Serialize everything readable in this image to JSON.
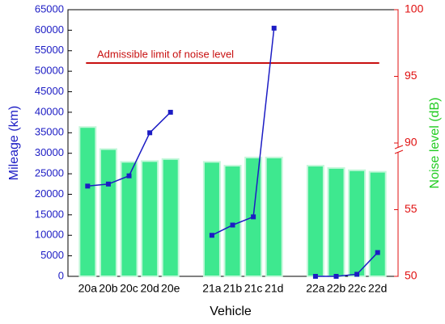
{
  "chart_data": {
    "type": "bar-line",
    "x_label": "Vehicle",
    "y_label": "Mileage (km)",
    "y2_label": "Noise level (dB)",
    "categories": [
      "20a",
      "20b",
      "20c",
      "20d",
      "20e",
      null,
      "21a",
      "21b",
      "21c",
      "21d",
      null,
      "22a",
      "22b",
      "22c",
      "22d"
    ],
    "series": [
      {
        "name": "Noise level",
        "kind": "bar",
        "axis": "y2",
        "color": "#3ee88f",
        "values": [
          91.2,
          86.8,
          80.1,
          80.5,
          81.6,
          null,
          80.1,
          78.1,
          82.4,
          82.4,
          null,
          78.1,
          76.9,
          75.7,
          74.9
        ]
      },
      {
        "name": "Mileage",
        "kind": "line",
        "color": "#1c1cc4",
        "values": [
          22000,
          22500,
          24500,
          35000,
          40000,
          null,
          10000,
          12500,
          14500,
          60500,
          null,
          0,
          0,
          500,
          5800
        ]
      }
    ],
    "ylim": [
      0,
      65000
    ],
    "yticks": [
      0,
      5000,
      10000,
      15000,
      20000,
      25000,
      30000,
      35000,
      40000,
      45000,
      50000,
      55000,
      60000,
      65000
    ],
    "y2lim": [
      50,
      100
    ],
    "y2ticks": [
      50,
      55,
      90,
      95,
      100
    ],
    "y2break": [
      55,
      90
    ],
    "y_color": "#1c1cc4",
    "y2_color": "#e01010",
    "y2_label_color": "#22cc22",
    "limit": {
      "label": "Admissible limit of noise level",
      "value": 96,
      "axis": "y2",
      "color": "#c81010"
    }
  }
}
